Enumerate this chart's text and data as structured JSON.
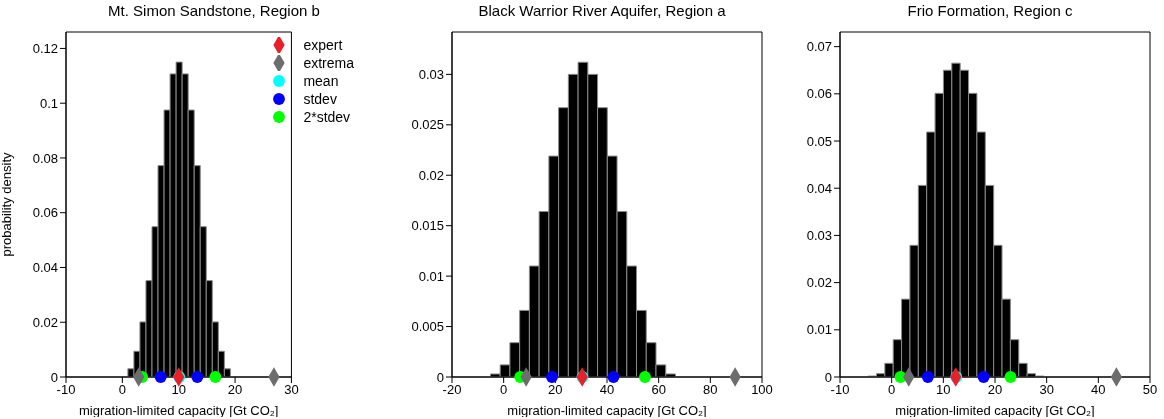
{
  "chart_data": [
    {
      "type": "histogram",
      "title": "Mt. Simon Sandstone, Region b",
      "xlabel": "migration-limited capacity [Gt CO₂]",
      "ylabel": "probability density",
      "color": "#000000",
      "bins": [
        0.98,
        2.05,
        3.12,
        4.19,
        5.26,
        6.33,
        7.4,
        8.47,
        9.54,
        10.61,
        11.68,
        12.75,
        13.82,
        14.89,
        15.96,
        17.03,
        18.1,
        19.17
      ],
      "values": [
        0.003,
        0.0094,
        0.0201,
        0.0352,
        0.0549,
        0.0772,
        0.0975,
        0.1107,
        0.115,
        0.1107,
        0.0975,
        0.0772,
        0.0549,
        0.0352,
        0.0201,
        0.0094,
        0.003
      ],
      "series": [
        {
          "type": "scatter",
          "marker": "diamond",
          "name": "expert",
          "color": "#e8202a",
          "x": [
            10.0
          ],
          "values": [
            0
          ]
        },
        {
          "type": "scatter",
          "marker": "diamond",
          "name": "extrema",
          "color": "#6d6d6e",
          "x": [
            2.9,
            26.9
          ],
          "values": [
            0,
            0
          ]
        },
        {
          "type": "scatter",
          "marker": "circle",
          "name": "mean",
          "color": "#00ffff",
          "x": [
            10.1
          ],
          "values": [
            0
          ]
        },
        {
          "type": "scatter",
          "marker": "circle",
          "name": "stdev",
          "color": "#0000ff",
          "x": [
            6.8,
            13.3
          ],
          "values": [
            0,
            0
          ]
        },
        {
          "type": "scatter",
          "marker": "circle",
          "name": "2*stdev",
          "color": "#00ff00",
          "x": [
            3.5,
            16.5
          ],
          "values": [
            0,
            0
          ]
        }
      ],
      "xlim": [
        -10,
        30
      ],
      "xticks": [
        -10,
        0,
        10,
        20,
        30
      ],
      "ylim": [
        0,
        0.126
      ],
      "yticks": [
        0,
        0.02,
        0.04,
        0.06,
        0.08,
        0.1,
        0.12
      ],
      "grid": false,
      "legend": "top right"
    },
    {
      "type": "histogram",
      "title": "Black Warrior River Aquifer, Region a",
      "xlabel": "migration-limited capacity [Gt CO₂]",
      "color": "#000000",
      "bins": [
        -5.12,
        -1.35,
        2.42,
        6.19,
        9.96,
        13.73,
        17.5,
        21.27,
        25.04,
        28.81,
        32.58,
        36.35,
        40.12,
        43.89,
        47.66,
        51.43,
        55.2,
        58.97,
        62.74,
        66.51
      ],
      "values": [
        0.0003,
        0.0012,
        0.0034,
        0.0066,
        0.011,
        0.0164,
        0.0219,
        0.0267,
        0.03,
        0.0312,
        0.03,
        0.0267,
        0.0219,
        0.0164,
        0.011,
        0.0066,
        0.0034,
        0.0012,
        0.0003
      ],
      "series": [
        {
          "type": "scatter",
          "marker": "diamond",
          "color": "#e8202a",
          "x": [
            30.4
          ],
          "values": [
            0
          ]
        },
        {
          "type": "scatter",
          "marker": "diamond",
          "color": "#6d6d6e",
          "x": [
            8.7,
            89.6
          ],
          "values": [
            0,
            0
          ]
        },
        {
          "type": "scatter",
          "marker": "circle",
          "color": "#00ffff",
          "x": [
            30.5
          ],
          "values": [
            0
          ]
        },
        {
          "type": "scatter",
          "marker": "circle",
          "color": "#0000ff",
          "x": [
            18.7,
            42.5
          ],
          "values": [
            0,
            0
          ]
        },
        {
          "type": "scatter",
          "marker": "circle",
          "color": "#00ff00",
          "x": [
            6.4,
            54.7
          ],
          "values": [
            0,
            0
          ]
        }
      ],
      "xlim": [
        -20,
        100
      ],
      "xticks": [
        -20,
        0,
        20,
        40,
        60,
        80,
        100
      ],
      "ylim": [
        0,
        0.0342
      ],
      "yticks": [
        0,
        0.005,
        0.01,
        0.015,
        0.02,
        0.025,
        0.03
      ],
      "grid": false,
      "legend": false
    },
    {
      "type": "histogram",
      "title": "Frio Formation, Region c",
      "xlabel": "migration-limited capacity [Gt CO₂]",
      "color": "#000000",
      "bins": [
        -4.56,
        -2.94,
        -1.32,
        0.3,
        1.92,
        3.54,
        5.16,
        6.78,
        8.4,
        10.02,
        11.64,
        13.26,
        14.88,
        16.5,
        18.12,
        19.74,
        21.36,
        22.98,
        24.6,
        26.22,
        27.84,
        29.46
      ],
      "values": [
        0.0002,
        0.0007,
        0.0029,
        0.0079,
        0.0165,
        0.0279,
        0.0406,
        0.0519,
        0.0601,
        0.065,
        0.0665,
        0.065,
        0.0601,
        0.0519,
        0.0406,
        0.0279,
        0.0165,
        0.0079,
        0.0029,
        0.0007,
        0.0002
      ],
      "series": [
        {
          "type": "scatter",
          "marker": "diamond",
          "color": "#e8202a",
          "x": [
            12.4
          ],
          "values": [
            0
          ]
        },
        {
          "type": "scatter",
          "marker": "diamond",
          "color": "#6d6d6e",
          "x": [
            3.3,
            43.5
          ],
          "values": [
            0,
            0
          ]
        },
        {
          "type": "scatter",
          "marker": "circle",
          "color": "#00ffff",
          "x": [
            12.5
          ],
          "values": [
            0
          ]
        },
        {
          "type": "scatter",
          "marker": "circle",
          "color": "#0000ff",
          "x": [
            7.0,
            17.8
          ],
          "values": [
            0,
            0
          ]
        },
        {
          "type": "scatter",
          "marker": "circle",
          "color": "#00ff00",
          "x": [
            1.7,
            23.0
          ],
          "values": [
            0,
            0
          ]
        }
      ],
      "xlim": [
        -10,
        50
      ],
      "xticks": [
        -10,
        0,
        10,
        20,
        30,
        40,
        50
      ],
      "ylim": [
        0,
        0.0731
      ],
      "yticks": [
        0,
        0.01,
        0.02,
        0.03,
        0.04,
        0.05,
        0.06,
        0.07
      ],
      "grid": false,
      "legend": false
    }
  ]
}
